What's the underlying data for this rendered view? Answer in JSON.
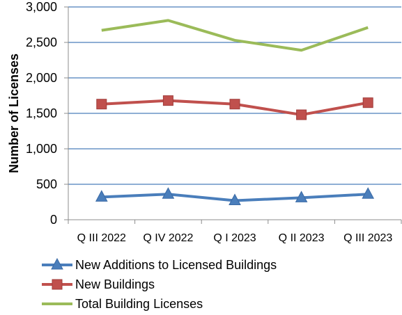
{
  "chart_data": {
    "type": "line",
    "categories": [
      "Q III 2022",
      "Q IV 2022",
      "Q I 2023",
      "Q II 2023",
      "Q III 2023"
    ],
    "ylabel": "Number of Licenses",
    "ylim": [
      0,
      3000
    ],
    "yticks": [
      "0",
      "500",
      "1,000",
      "1,500",
      "2,000",
      "2,500",
      "3,000"
    ],
    "ytick_values": [
      0,
      500,
      1000,
      1500,
      2000,
      2500,
      3000
    ],
    "grid": true,
    "legend_position": "bottom",
    "series": [
      {
        "name": "New Additions to Licensed Buildings",
        "values": [
          320,
          360,
          270,
          310,
          360
        ],
        "color": "#4a7ebb",
        "marker": "triangle"
      },
      {
        "name": "New Buildings",
        "values": [
          1630,
          1680,
          1630,
          1480,
          1650
        ],
        "color": "#c0504d",
        "marker": "square"
      },
      {
        "name": "Total Building Licenses",
        "values": [
          2670,
          2810,
          2530,
          2390,
          2710
        ],
        "color": "#9bbb59",
        "marker": "none"
      }
    ]
  }
}
